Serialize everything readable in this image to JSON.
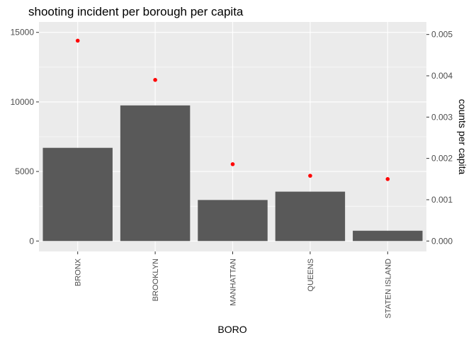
{
  "chart_data": {
    "type": "bar",
    "title": "shooting incident per borough per capita",
    "xlabel": "BORO",
    "ylabel": "",
    "y2label": "counts per capita",
    "categories": [
      "BRONX",
      "BROOKLYN",
      "MANHATTAN",
      "QUEENS",
      "STATEN ISLAND"
    ],
    "series": [
      {
        "type": "bar",
        "axis": "left",
        "values": [
          6700,
          9750,
          2950,
          3550,
          740
        ],
        "color": "#595959"
      },
      {
        "type": "point",
        "axis": "right",
        "values": [
          0.00485,
          0.0039,
          0.00186,
          0.00158,
          0.0015
        ],
        "color": "#ff0000"
      }
    ],
    "ylim": [
      -750,
      15750
    ],
    "yticks": [
      0,
      5000,
      10000,
      15000
    ],
    "ytick_labels": [
      "0",
      "5000",
      "10000",
      "15000"
    ],
    "y2ticks": [
      0.0,
      0.001,
      0.002,
      0.003,
      0.004,
      0.005
    ],
    "y2tick_labels": [
      "0.000",
      "0.001",
      "0.002",
      "0.003",
      "0.004",
      "0.005"
    ],
    "grid": true,
    "panel_background": "#ebebeb",
    "grid_color": "#ffffff"
  }
}
